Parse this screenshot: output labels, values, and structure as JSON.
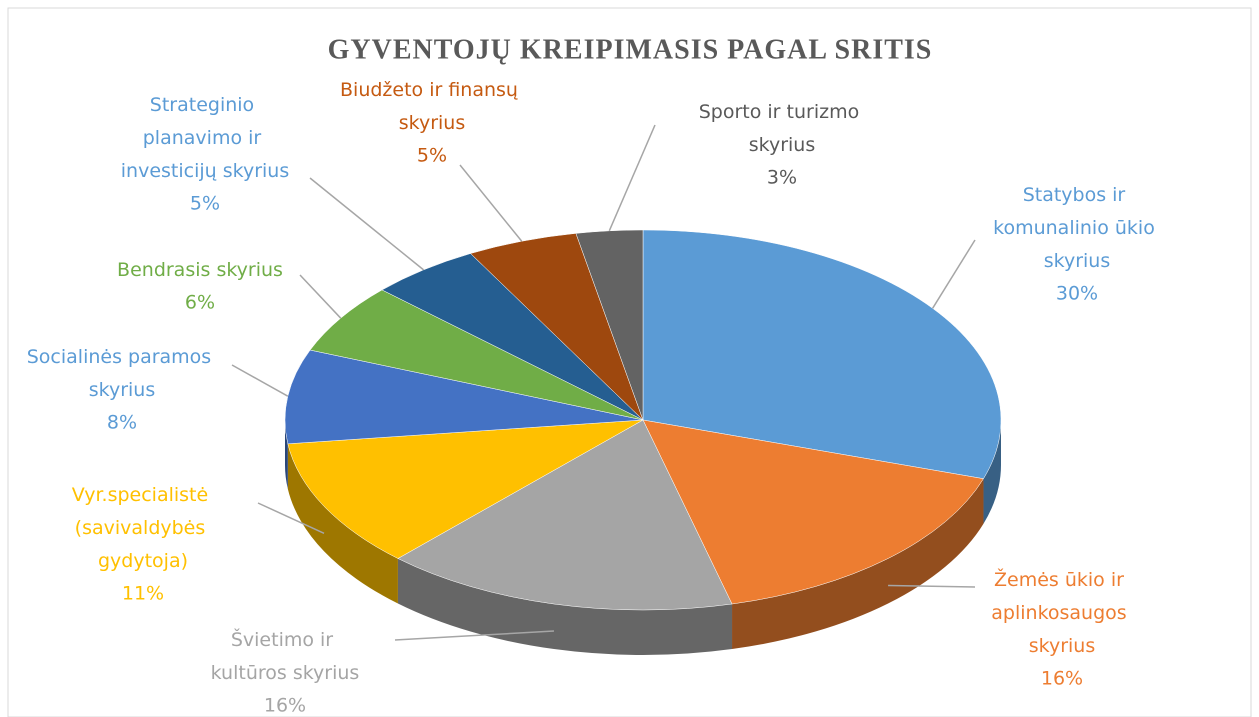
{
  "chart_data": {
    "type": "pie3d",
    "title": "GYVENTOJŲ KREIPIMASIS PAGAL SRITIS",
    "categories": [
      "Statybos ir komunalinio ūkio skyrius",
      "Žemės ūkio ir aplinkosaugos skyrius",
      "Švietimo ir kultūros skyrius",
      "Vyr.specialistė (savivaldybės gydytoja)",
      "Socialinės paramos skyrius",
      "Bendrasis skyrius",
      "Strateginio planavimo ir investicijų skyrius",
      "Biudžeto ir finansų skyrius",
      "Sporto ir turizmo skyrius"
    ],
    "values": [
      30,
      16,
      16,
      11,
      8,
      6,
      5,
      5,
      3
    ],
    "value_labels": [
      "30%",
      "16%",
      "16%",
      "11%",
      "8%",
      "6%",
      "5%",
      "5%",
      "3%"
    ],
    "colors": [
      "#5b9bd5",
      "#ed7d31",
      "#a5a5a5",
      "#ffc000",
      "#4472c4",
      "#70ad47",
      "#255e91",
      "#9e480e",
      "#636363"
    ]
  }
}
